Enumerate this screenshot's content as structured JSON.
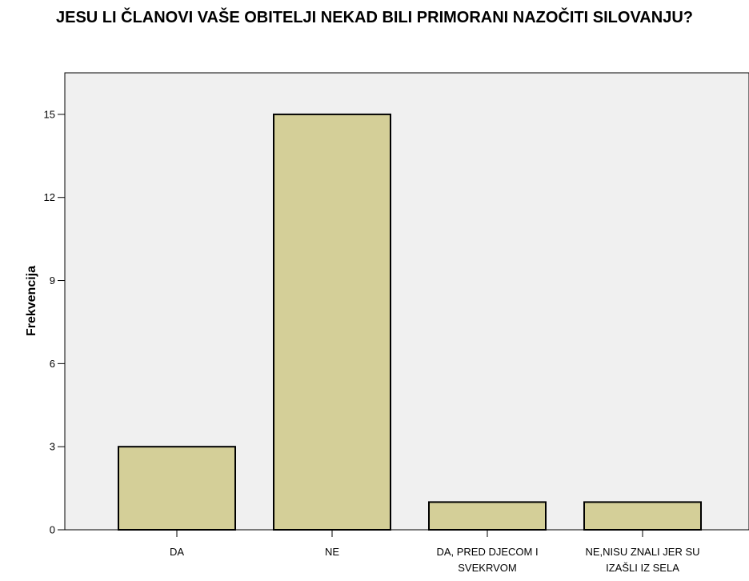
{
  "chart_data": {
    "type": "bar",
    "title": "JESU LI ČLANOVI VAŠE OBITELJI NEKAD BILI PRIMORANI NAZOČITI SILOVANJU?",
    "xlabel": "",
    "ylabel": "Frekvencija",
    "categories": [
      [
        "DA"
      ],
      [
        "NE"
      ],
      [
        "DA, PRED DJECOM I",
        "SVEKRVOM"
      ],
      [
        "NE,NISU ZNALI JER SU",
        "IZAŠLI IZ SELA"
      ]
    ],
    "values": [
      3,
      15,
      1,
      1
    ],
    "ylim": [
      0,
      16.5
    ],
    "yticks": [
      0,
      3,
      6,
      9,
      12,
      15
    ],
    "grid": false,
    "legend": "none",
    "colors": {
      "bar_fill": "#d4cf98",
      "bar_stroke": "#000000",
      "plot_background": "#f0f0f0"
    }
  }
}
